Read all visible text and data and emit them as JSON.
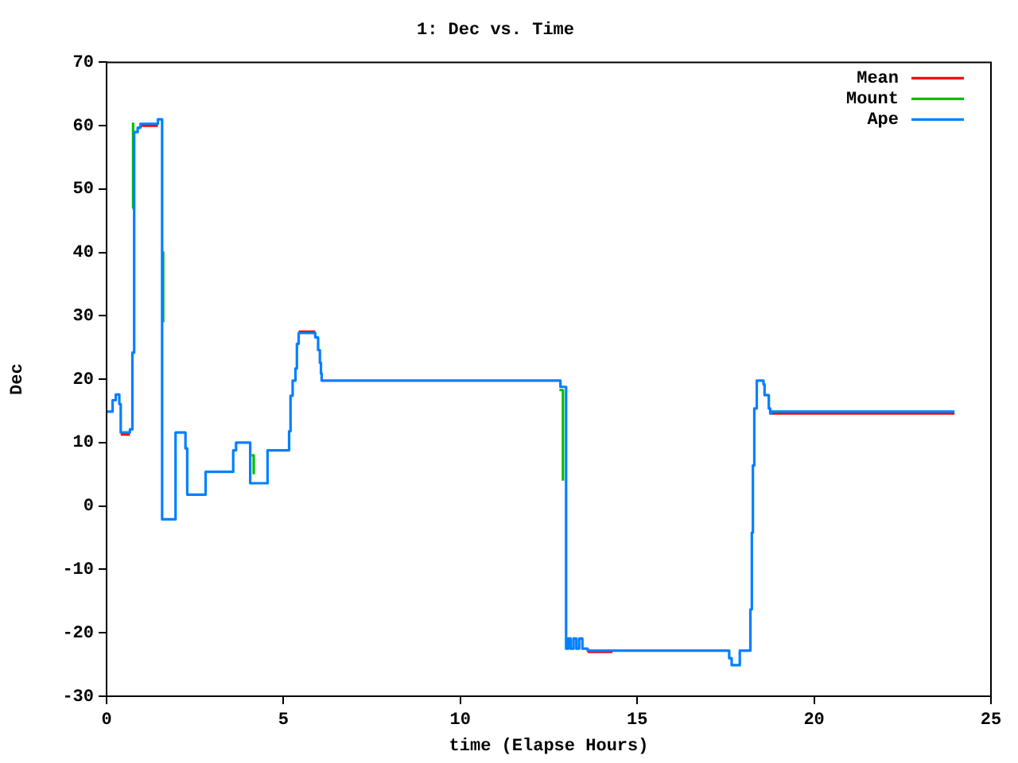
{
  "chart_data": {
    "type": "step",
    "title": "1: Dec vs. Time",
    "xlabel": "time (Elapse Hours)",
    "ylabel": "Dec",
    "xlim": [
      0,
      25
    ],
    "xticks": [
      0,
      5,
      10,
      15,
      20,
      25
    ],
    "ylim": [
      -30,
      70
    ],
    "yticks": [
      -30,
      -20,
      -10,
      0,
      10,
      20,
      30,
      40,
      50,
      60,
      70
    ],
    "grid": false,
    "legend": "top right",
    "line_style": "solid",
    "marker": "none",
    "series": [
      {
        "name": "Mean",
        "color": "#ff0000",
        "x": [
          0.4,
          0.66,
          0.8,
          0.96,
          1.45,
          3,
          5.43,
          5.9,
          10,
          13.6,
          14.3,
          16,
          18.76,
          23.97
        ],
        "values": [
          11.3,
          11.3,
          null,
          60,
          60,
          null,
          27.5,
          27.5,
          null,
          -23,
          -23,
          null,
          14.6,
          14.6
        ]
      },
      {
        "name": "Mount",
        "color": "#00c000",
        "x": [
          0.73,
          0.75,
          1.0,
          1.57,
          1.6,
          3.0,
          4.1,
          4.16,
          8.0,
          12.8,
          12.9
        ],
        "values": [
          47,
          60.5,
          null,
          40,
          29,
          null,
          8,
          5,
          null,
          18.3,
          4
        ]
      },
      {
        "name": "Ape",
        "color": "#0080ff",
        "x": [
          0,
          0.17,
          0.26,
          0.36,
          0.4,
          0.66,
          0.73,
          0.78,
          0.88,
          0.96,
          1.45,
          1.57,
          1.95,
          2.23,
          2.28,
          2.8,
          3.58,
          3.66,
          4.06,
          4.55,
          5.16,
          5.2,
          5.26,
          5.34,
          5.38,
          5.43,
          5.9,
          5.98,
          6.03,
          6.06,
          6.08,
          12.83,
          12.99,
          13.05,
          13.12,
          13.2,
          13.28,
          13.36,
          13.45,
          13.6,
          17.6,
          17.67,
          17.9,
          18.2,
          18.24,
          18.27,
          18.31,
          18.38,
          18.57,
          18.6,
          18.72,
          18.76,
          18.8,
          23.97
        ],
        "values": [
          14.9,
          16.7,
          17.6,
          16.1,
          11.6,
          12.1,
          24.2,
          59,
          59.7,
          60.3,
          61,
          -2.1,
          11.6,
          9.1,
          1.8,
          5.4,
          8.8,
          10,
          3.6,
          8.8,
          11.8,
          17.4,
          19.8,
          21.7,
          25.6,
          27.3,
          26.6,
          24.6,
          22.6,
          20.9,
          19.8,
          18.8,
          -22.5,
          -20.9,
          -22.5,
          -20.9,
          -22.5,
          -20.9,
          -22.5,
          -22.8,
          -24,
          -25.1,
          -22.8,
          -16.3,
          -4.2,
          6.4,
          15.4,
          19.8,
          19.2,
          17.5,
          15.4,
          14.6,
          14.9,
          14.9
        ]
      }
    ]
  }
}
